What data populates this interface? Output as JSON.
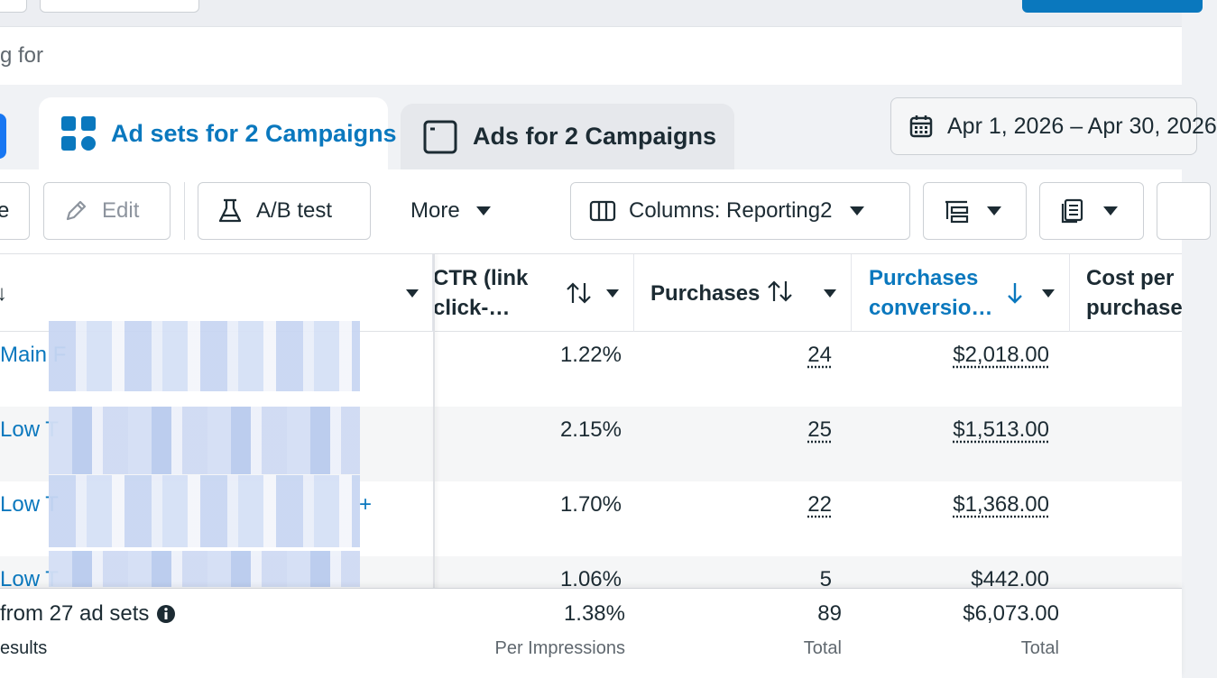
{
  "search": {
    "text": "g for"
  },
  "tabs": {
    "adsets_label": "Ad sets for 2 Campaigns",
    "ads_label": "Ads for 2 Campaigns"
  },
  "date_range": {
    "label": "Apr 1, 2026 – Apr 30, 2026"
  },
  "toolbar": {
    "dup_label": "e",
    "edit_label": "Edit",
    "abtest_label": "A/B test",
    "more_label": "More",
    "columns_label": "Columns: Reporting2"
  },
  "table": {
    "headers": {
      "name_sort": "↓",
      "ctr": "CTR (link click-…",
      "purchases": "Purchases",
      "pcv": "Purchases conversio…",
      "cpp": "Cost per purchase"
    },
    "rows": [
      {
        "name": "Main F",
        "ctr": "1.22%",
        "purchases": "24",
        "pcv": "$2,018.00"
      },
      {
        "name": "Low T",
        "ctr": "2.15%",
        "purchases": "25",
        "pcv": "$1,513.00"
      },
      {
        "name": "Low T",
        "ctr": "1.70%",
        "purchases": "22",
        "pcv": "$1,368.00",
        "suffix": "+"
      },
      {
        "name": "Low T",
        "ctr": "1.06%",
        "purchases": "5",
        "pcv": "$442.00"
      }
    ],
    "footer": {
      "title": "from 27 ad sets",
      "subtitle": "esults",
      "ctr": "1.38%",
      "ctr_label": "Per Impressions",
      "purchases": "89",
      "purchases_label": "Total",
      "pcv": "$6,073.00",
      "pcv_label": "Total"
    }
  }
}
